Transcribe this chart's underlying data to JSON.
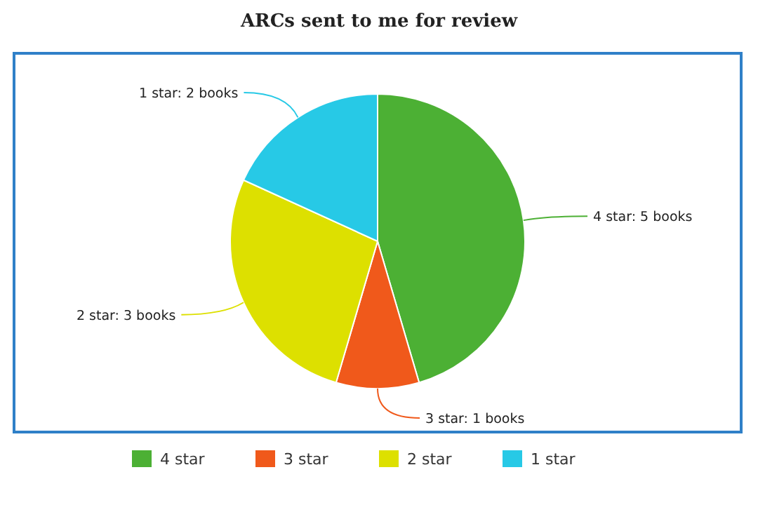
{
  "chart_data": {
    "type": "pie",
    "title": "ARCs sent to me for review",
    "categories": [
      "4 star",
      "3 star",
      "2 star",
      "1 star"
    ],
    "values": [
      5,
      1,
      3,
      2
    ],
    "colors": [
      "#4cb034",
      "#f0591b",
      "#dde000",
      "#27c9e6"
    ],
    "value_labels": [
      "4 star: 5 books",
      "3 star: 1 books",
      "2 star: 3 books",
      "1 star: 2 books"
    ],
    "legend": "bottom"
  }
}
